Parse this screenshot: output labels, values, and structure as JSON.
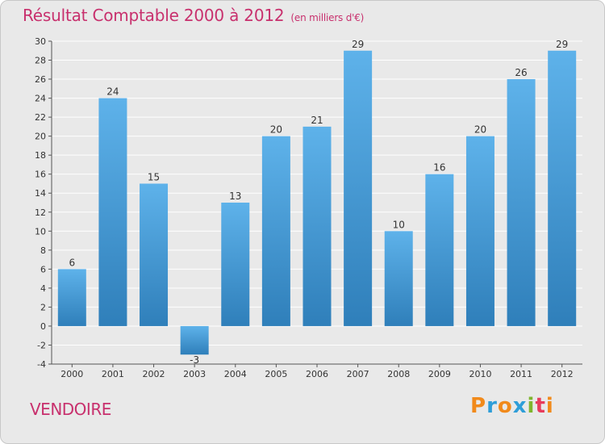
{
  "title": "Résultat Comptable 2000 à 2012",
  "unit": "(en milliers d'€)",
  "commune": "VENDOIRE",
  "logo": {
    "letters": [
      "P",
      "r",
      "o",
      "x",
      "i",
      "t",
      "i"
    ],
    "colors": [
      "#f18a1b",
      "#2f9ed8",
      "#f18a1b",
      "#2f9ed8",
      "#7fb52e",
      "#e83b5c",
      "#f18a1b"
    ]
  },
  "colors": {
    "bar_top": "#5eb2ea",
    "bar_bottom": "#2f7fba",
    "title": "#c8306d",
    "grid": "#ffffff",
    "axis": "#555555"
  },
  "chart_data": {
    "type": "bar",
    "title": "Résultat Comptable 2000 à 2012",
    "ylabel": "(en milliers d'€)",
    "xlabel": "",
    "categories": [
      "2000",
      "2001",
      "2002",
      "2003",
      "2004",
      "2005",
      "2006",
      "2007",
      "2008",
      "2009",
      "2010",
      "2011",
      "2012"
    ],
    "values": [
      6,
      24,
      15,
      -3,
      13,
      20,
      21,
      29,
      10,
      16,
      20,
      26,
      29
    ],
    "ylim": [
      -4,
      30
    ],
    "yticks": [
      -4,
      -2,
      0,
      2,
      4,
      6,
      8,
      10,
      12,
      14,
      16,
      18,
      20,
      22,
      24,
      26,
      28,
      30
    ],
    "grid": true,
    "legend": "none"
  }
}
